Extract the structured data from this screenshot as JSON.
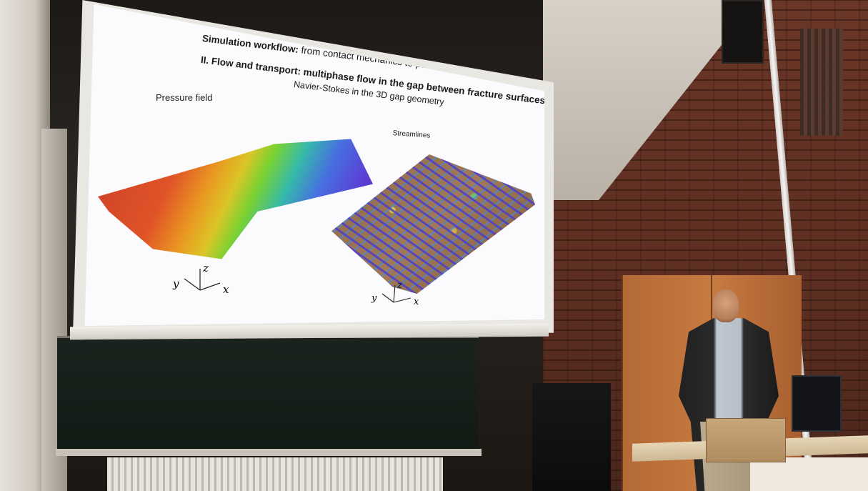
{
  "slide": {
    "title_bold": "Simulation workflow:",
    "title_rest": " from contact mechanics to pore-scale flow modeling",
    "subtitle": "II. Flow and transport: multiphase flow in the gap between fracture surfaces",
    "gap_caption": "Navier-Stokes in the 3D gap geometry",
    "left_panel_label": "Pressure field",
    "right_panel_label": "Streamlines",
    "axes": {
      "x": "x",
      "y": "y",
      "z": "z"
    }
  }
}
